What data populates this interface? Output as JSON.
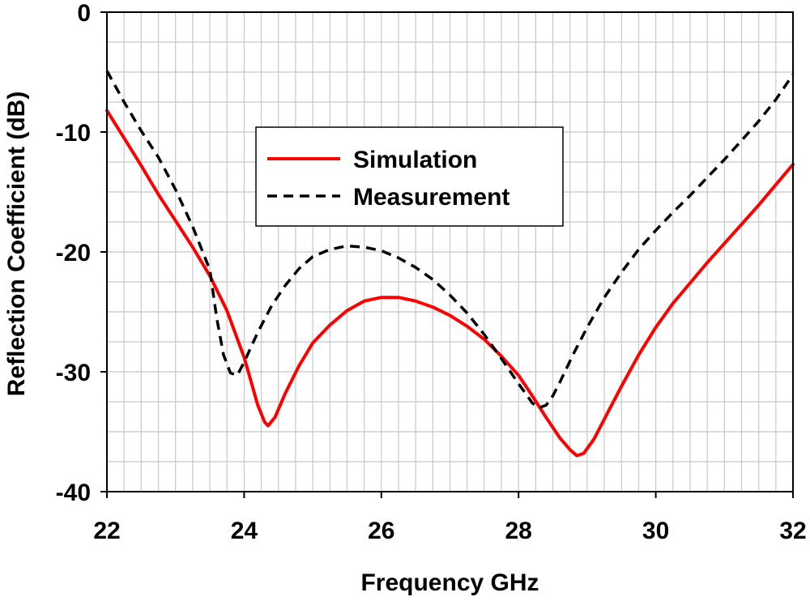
{
  "chart_data": {
    "type": "line",
    "title": "",
    "xlabel": "Frequency GHz",
    "ylabel": "Reflection Coefficient (dB)",
    "xlim": [
      22,
      32
    ],
    "ylim": [
      -40,
      0
    ],
    "xticks": [
      22,
      24,
      26,
      28,
      30,
      32
    ],
    "yticks": [
      0,
      -10,
      -20,
      -30,
      -40
    ],
    "grid": true,
    "legend_position": "top-center",
    "series": [
      {
        "name": "Simulation",
        "color": "#ff0000",
        "style": "solid",
        "x": [
          22,
          22.25,
          22.5,
          22.75,
          23,
          23.25,
          23.5,
          23.75,
          24,
          24.1,
          24.2,
          24.3,
          24.35,
          24.45,
          24.6,
          24.8,
          25,
          25.25,
          25.5,
          25.75,
          26,
          26.25,
          26.5,
          26.75,
          27,
          27.25,
          27.5,
          27.75,
          28,
          28.2,
          28.4,
          28.6,
          28.75,
          28.85,
          28.95,
          29.1,
          29.3,
          29.5,
          29.75,
          30,
          30.25,
          30.5,
          30.75,
          31,
          31.25,
          31.5,
          31.75,
          32
        ],
        "y": [
          -8.2,
          -10.5,
          -12.8,
          -15.2,
          -17.4,
          -19.6,
          -22,
          -24.9,
          -28.8,
          -30.8,
          -32.8,
          -34.2,
          -34.5,
          -33.8,
          -31.8,
          -29.5,
          -27.6,
          -26.1,
          -24.9,
          -24.1,
          -23.8,
          -23.8,
          -24.1,
          -24.6,
          -25.3,
          -26.2,
          -27.3,
          -28.7,
          -30.3,
          -32,
          -33.8,
          -35.5,
          -36.5,
          -37,
          -36.8,
          -35.6,
          -33.4,
          -31.2,
          -28.6,
          -26.3,
          -24.3,
          -22.6,
          -20.9,
          -19.3,
          -17.7,
          -16.1,
          -14.4,
          -12.7
        ]
      },
      {
        "name": "Measurement",
        "color": "#000000",
        "style": "dashed",
        "x": [
          22,
          22.25,
          22.5,
          22.75,
          23,
          23.25,
          23.5,
          23.6,
          23.7,
          23.8,
          23.9,
          24,
          24.2,
          24.4,
          24.6,
          24.8,
          25,
          25.25,
          25.5,
          25.75,
          26,
          26.25,
          26.5,
          26.75,
          27,
          27.25,
          27.5,
          27.75,
          28,
          28.1,
          28.2,
          28.3,
          28.4,
          28.5,
          28.6,
          28.8,
          29,
          29.25,
          29.5,
          29.75,
          30,
          30.25,
          30.5,
          30.75,
          31,
          31.25,
          31.5,
          31.75,
          32
        ],
        "y": [
          -4.9,
          -7.5,
          -9.9,
          -12.1,
          -14.8,
          -17.9,
          -21.5,
          -25.5,
          -28.6,
          -30.1,
          -30.3,
          -29.2,
          -26.7,
          -24.5,
          -22.8,
          -21.4,
          -20.4,
          -19.8,
          -19.5,
          -19.6,
          -19.9,
          -20.5,
          -21.3,
          -22.3,
          -23.6,
          -25.1,
          -26.9,
          -28.9,
          -31,
          -31.8,
          -32.6,
          -33,
          -32.8,
          -32,
          -30.9,
          -28.5,
          -26.3,
          -23.8,
          -21.7,
          -19.8,
          -18.2,
          -16.7,
          -15.3,
          -13.8,
          -12.3,
          -10.7,
          -9.1,
          -7.3,
          -5.2
        ]
      }
    ]
  }
}
